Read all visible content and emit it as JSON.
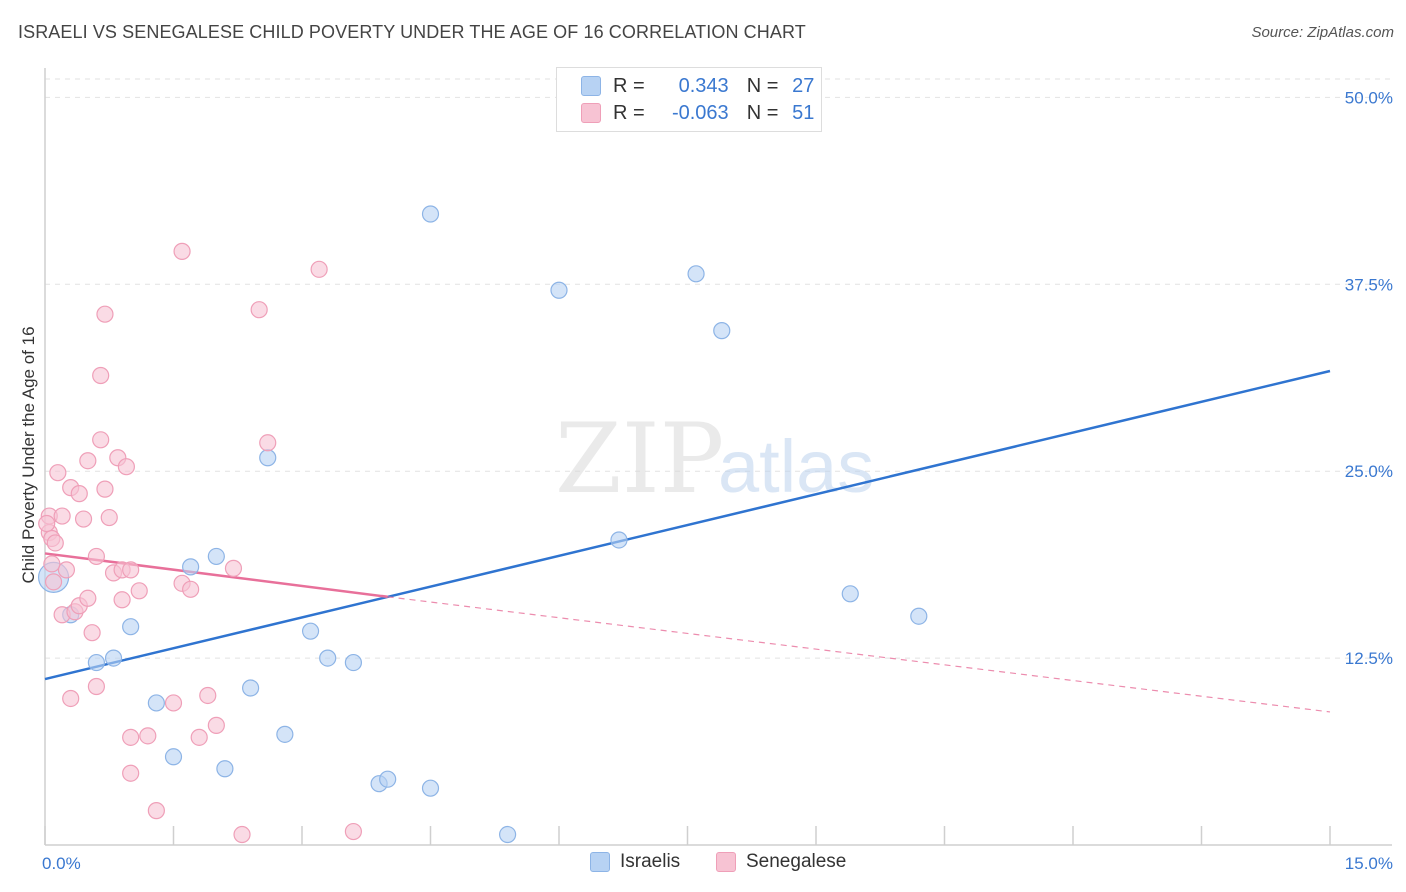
{
  "header": {
    "title": "ISRAELI VS SENEGALESE CHILD POVERTY UNDER THE AGE OF 16 CORRELATION CHART",
    "source": "Source: ZipAtlas.com"
  },
  "legend": {
    "r_label": "R =",
    "n_label": "N =",
    "israelis": {
      "r": "0.343",
      "n": "27"
    },
    "senegalese": {
      "r": "-0.063",
      "n": "51"
    }
  },
  "series_names": {
    "israelis": "Israelis",
    "senegalese": "Senegalese"
  },
  "watermark": {
    "zip": "ZIP",
    "atlas": "atlas"
  },
  "colors": {
    "blue_fill": "#b7d2f3",
    "blue_stroke": "#8db4e6",
    "blue_line": "#2f74d0",
    "pink_fill": "#f7c3d3",
    "pink_stroke": "#ef9fb8",
    "pink_line": "#e8709a",
    "axis_label": "#3a78d0"
  },
  "chart_data": {
    "type": "scatter",
    "title": "ISRAELI VS SENEGALESE CHILD POVERTY UNDER THE AGE OF 16 CORRELATION CHART",
    "xlabel": "",
    "ylabel": "Child Poverty Under the Age of 16",
    "xlim": [
      0,
      15
    ],
    "ylim": [
      0,
      52.5
    ],
    "x_tick_labels": [
      "0.0%",
      "15.0%"
    ],
    "y_ticks": [
      12.5,
      25.0,
      37.5,
      50.0
    ],
    "y_tick_labels": [
      "12.5%",
      "25.0%",
      "37.5%",
      "50.0%"
    ],
    "series": [
      {
        "name": "Israelis",
        "points": [
          [
            0.1,
            17.9
          ],
          [
            0.3,
            15.4
          ],
          [
            0.6,
            12.2
          ],
          [
            0.8,
            12.5
          ],
          [
            1.0,
            14.6
          ],
          [
            1.3,
            9.5
          ],
          [
            1.5,
            5.9
          ],
          [
            1.7,
            18.6
          ],
          [
            2.0,
            19.3
          ],
          [
            2.1,
            5.1
          ],
          [
            2.4,
            10.5
          ],
          [
            2.6,
            25.9
          ],
          [
            2.8,
            7.4
          ],
          [
            3.1,
            14.3
          ],
          [
            3.3,
            12.5
          ],
          [
            3.6,
            12.2
          ],
          [
            3.9,
            4.1
          ],
          [
            4.0,
            4.4
          ],
          [
            4.5,
            3.8
          ],
          [
            4.5,
            42.2
          ],
          [
            5.4,
            0.7
          ],
          [
            6.0,
            37.1
          ],
          [
            6.7,
            20.4
          ],
          [
            7.6,
            38.2
          ],
          [
            7.9,
            34.4
          ],
          [
            9.4,
            16.8
          ],
          [
            10.2,
            15.3
          ]
        ],
        "trend": {
          "x0": 0,
          "y0": 11.1,
          "x1": 15,
          "y1": 31.7,
          "dashed": false
        }
      },
      {
        "name": "Senegalese",
        "points": [
          [
            0.05,
            22.0
          ],
          [
            0.05,
            20.9
          ],
          [
            0.08,
            20.5
          ],
          [
            0.1,
            17.6
          ],
          [
            0.12,
            20.2
          ],
          [
            0.15,
            24.9
          ],
          [
            0.2,
            15.4
          ],
          [
            0.2,
            22.0
          ],
          [
            0.25,
            18.4
          ],
          [
            0.3,
            23.9
          ],
          [
            0.3,
            9.8
          ],
          [
            0.35,
            15.6
          ],
          [
            0.4,
            23.5
          ],
          [
            0.4,
            16.0
          ],
          [
            0.45,
            21.8
          ],
          [
            0.5,
            16.5
          ],
          [
            0.5,
            25.7
          ],
          [
            0.55,
            14.2
          ],
          [
            0.6,
            19.3
          ],
          [
            0.6,
            10.6
          ],
          [
            0.65,
            27.1
          ],
          [
            0.65,
            31.4
          ],
          [
            0.7,
            23.8
          ],
          [
            0.7,
            35.5
          ],
          [
            0.75,
            21.9
          ],
          [
            0.8,
            18.2
          ],
          [
            0.85,
            25.9
          ],
          [
            0.9,
            18.4
          ],
          [
            0.9,
            16.4
          ],
          [
            0.95,
            25.3
          ],
          [
            1.0,
            18.4
          ],
          [
            1.0,
            4.8
          ],
          [
            1.0,
            7.2
          ],
          [
            1.1,
            17.0
          ],
          [
            1.2,
            7.3
          ],
          [
            1.3,
            2.3
          ],
          [
            1.5,
            9.5
          ],
          [
            1.6,
            17.5
          ],
          [
            1.6,
            39.7
          ],
          [
            1.7,
            17.1
          ],
          [
            1.8,
            7.2
          ],
          [
            1.9,
            10.0
          ],
          [
            2.0,
            8.0
          ],
          [
            2.2,
            18.5
          ],
          [
            2.3,
            0.7
          ],
          [
            2.5,
            35.8
          ],
          [
            2.6,
            26.9
          ],
          [
            3.2,
            38.5
          ],
          [
            3.6,
            0.9
          ],
          [
            0.02,
            21.5
          ],
          [
            0.08,
            18.8
          ]
        ],
        "trend": {
          "x0": 0,
          "y0": 19.5,
          "x1": 4.0,
          "y1": 16.6,
          "dashed": false
        },
        "trend_extension": {
          "x0": 4.0,
          "y0": 16.6,
          "x1": 15,
          "y1": 8.9,
          "dashed": true
        }
      }
    ]
  }
}
